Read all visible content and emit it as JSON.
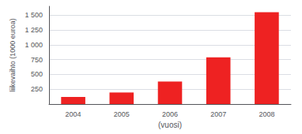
{
  "chart_data": {
    "type": "bar",
    "categories": [
      "2004",
      "2005",
      "2006",
      "2007",
      "2008"
    ],
    "values": [
      120,
      195,
      380,
      790,
      1550
    ],
    "color": "#ee2222",
    "xlabel": "(vuosi)",
    "ylabel": "liikevaihto (1000 euroa)",
    "ylim": [
      0,
      1650
    ],
    "yticks": [
      250,
      500,
      750,
      {
        "value": 1000,
        "label": "1 000"
      },
      {
        "value": 1250,
        "label": "1 250"
      },
      {
        "value": 1500,
        "label": "1 500"
      }
    ],
    "grid": true
  }
}
